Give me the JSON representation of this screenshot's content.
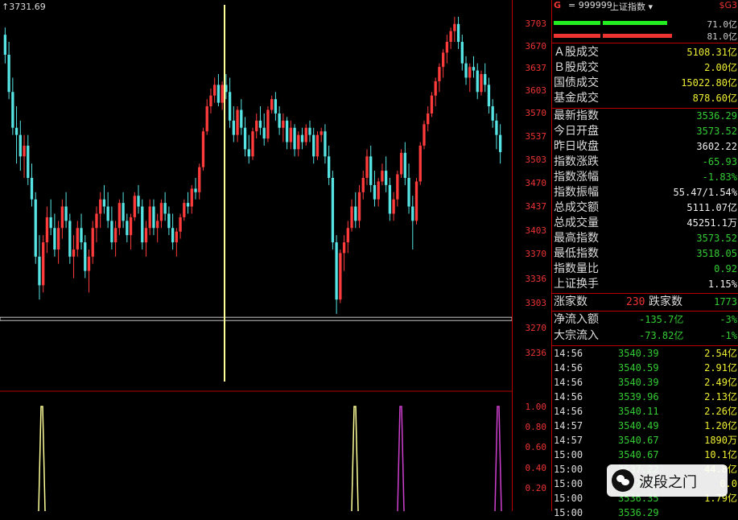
{
  "chart": {
    "max_label": "3731.69",
    "y_ticks": [
      "3703",
      "3670",
      "3637",
      "3603",
      "3570",
      "3537",
      "3503",
      "3470",
      "3437",
      "3403",
      "3370",
      "3336",
      "3303",
      "3270",
      "3236"
    ],
    "sub_ticks": [
      "1.00",
      "0.80",
      "0.60",
      "0.40",
      "0.20"
    ],
    "colors": {
      "up": "#ff3b3b",
      "down": "#56e4e4",
      "ref": "#c8c8c8",
      "cursor": "#ffff99",
      "grid": "#b00000",
      "sub_yellow": "#ffff99",
      "sub_purple": "#d040d0"
    }
  },
  "chart_data": {
    "type": "candlestick",
    "ylim": [
      3220,
      3735
    ],
    "reference_line": 3303,
    "candles": [
      [
        3700,
        3710,
        3660,
        3672
      ],
      [
        3672,
        3690,
        3610,
        3620
      ],
      [
        3620,
        3640,
        3560,
        3570
      ],
      [
        3570,
        3600,
        3520,
        3560
      ],
      [
        3560,
        3580,
        3510,
        3530
      ],
      [
        3530,
        3560,
        3500,
        3545
      ],
      [
        3545,
        3560,
        3490,
        3500
      ],
      [
        3500,
        3520,
        3460,
        3470
      ],
      [
        3470,
        3480,
        3380,
        3390
      ],
      [
        3390,
        3420,
        3330,
        3350
      ],
      [
        3350,
        3420,
        3340,
        3410
      ],
      [
        3410,
        3460,
        3395,
        3445
      ],
      [
        3445,
        3470,
        3420,
        3430
      ],
      [
        3430,
        3450,
        3390,
        3400
      ],
      [
        3400,
        3440,
        3380,
        3430
      ],
      [
        3430,
        3470,
        3415,
        3460
      ],
      [
        3460,
        3480,
        3430,
        3440
      ],
      [
        3440,
        3450,
        3380,
        3390
      ],
      [
        3390,
        3420,
        3360,
        3400
      ],
      [
        3400,
        3440,
        3390,
        3430
      ],
      [
        3430,
        3450,
        3400,
        3410
      ],
      [
        3410,
        3420,
        3360,
        3370
      ],
      [
        3370,
        3400,
        3340,
        3390
      ],
      [
        3390,
        3440,
        3380,
        3430
      ],
      [
        3430,
        3460,
        3410,
        3450
      ],
      [
        3450,
        3480,
        3430,
        3470
      ],
      [
        3470,
        3490,
        3450,
        3460
      ],
      [
        3460,
        3480,
        3430,
        3440
      ],
      [
        3440,
        3460,
        3400,
        3410
      ],
      [
        3410,
        3440,
        3390,
        3430
      ],
      [
        3430,
        3470,
        3420,
        3465
      ],
      [
        3465,
        3480,
        3430,
        3440
      ],
      [
        3440,
        3450,
        3410,
        3420
      ],
      [
        3420,
        3450,
        3400,
        3445
      ],
      [
        3445,
        3480,
        3440,
        3475
      ],
      [
        3475,
        3490,
        3450,
        3460
      ],
      [
        3460,
        3470,
        3400,
        3410
      ],
      [
        3410,
        3440,
        3390,
        3430
      ],
      [
        3430,
        3470,
        3420,
        3460
      ],
      [
        3460,
        3470,
        3420,
        3430
      ],
      [
        3430,
        3450,
        3410,
        3440
      ],
      [
        3440,
        3470,
        3430,
        3465
      ],
      [
        3465,
        3480,
        3440,
        3450
      ],
      [
        3450,
        3460,
        3420,
        3430
      ],
      [
        3430,
        3450,
        3400,
        3410
      ],
      [
        3410,
        3430,
        3390,
        3425
      ],
      [
        3425,
        3450,
        3415,
        3445
      ],
      [
        3445,
        3470,
        3440,
        3465
      ],
      [
        3465,
        3480,
        3450,
        3460
      ],
      [
        3460,
        3490,
        3450,
        3485
      ],
      [
        3485,
        3500,
        3470,
        3480
      ],
      [
        3480,
        3520,
        3470,
        3515
      ],
      [
        3515,
        3570,
        3510,
        3565
      ],
      [
        3565,
        3610,
        3560,
        3600
      ],
      [
        3600,
        3625,
        3590,
        3615
      ],
      [
        3615,
        3640,
        3605,
        3630
      ],
      [
        3630,
        3645,
        3600,
        3605
      ],
      [
        3605,
        3635,
        3595,
        3630
      ],
      [
        3630,
        3645,
        3610,
        3620
      ],
      [
        3620,
        3640,
        3570,
        3580
      ],
      [
        3580,
        3600,
        3550,
        3560
      ],
      [
        3560,
        3600,
        3550,
        3595
      ],
      [
        3595,
        3610,
        3560,
        3570
      ],
      [
        3570,
        3585,
        3530,
        3540
      ],
      [
        3540,
        3560,
        3520,
        3530
      ],
      [
        3530,
        3570,
        3525,
        3565
      ],
      [
        3565,
        3590,
        3555,
        3580
      ],
      [
        3580,
        3600,
        3560,
        3570
      ],
      [
        3570,
        3590,
        3545,
        3555
      ],
      [
        3555,
        3600,
        3550,
        3595
      ],
      [
        3595,
        3615,
        3590,
        3610
      ],
      [
        3610,
        3620,
        3580,
        3590
      ],
      [
        3590,
        3600,
        3560,
        3570
      ],
      [
        3570,
        3590,
        3550,
        3580
      ],
      [
        3580,
        3585,
        3540,
        3550
      ],
      [
        3550,
        3580,
        3540,
        3570
      ],
      [
        3570,
        3575,
        3530,
        3540
      ],
      [
        3540,
        3565,
        3530,
        3560
      ],
      [
        3560,
        3570,
        3540,
        3550
      ],
      [
        3550,
        3575,
        3545,
        3570
      ],
      [
        3570,
        3580,
        3550,
        3560
      ],
      [
        3560,
        3570,
        3520,
        3530
      ],
      [
        3530,
        3565,
        3525,
        3560
      ],
      [
        3560,
        3570,
        3550,
        3565
      ],
      [
        3565,
        3575,
        3520,
        3530
      ],
      [
        3530,
        3545,
        3490,
        3500
      ],
      [
        3500,
        3510,
        3400,
        3410
      ],
      [
        3410,
        3420,
        3310,
        3330
      ],
      [
        3330,
        3400,
        3325,
        3395
      ],
      [
        3395,
        3420,
        3370,
        3410
      ],
      [
        3410,
        3440,
        3395,
        3430
      ],
      [
        3430,
        3470,
        3425,
        3460
      ],
      [
        3460,
        3480,
        3430,
        3440
      ],
      [
        3440,
        3490,
        3430,
        3480
      ],
      [
        3480,
        3510,
        3470,
        3500
      ],
      [
        3500,
        3540,
        3490,
        3530
      ],
      [
        3530,
        3545,
        3480,
        3490
      ],
      [
        3490,
        3510,
        3460,
        3470
      ],
      [
        3470,
        3500,
        3460,
        3495
      ],
      [
        3495,
        3520,
        3490,
        3510
      ],
      [
        3510,
        3530,
        3480,
        3490
      ],
      [
        3490,
        3500,
        3440,
        3450
      ],
      [
        3450,
        3480,
        3440,
        3470
      ],
      [
        3470,
        3510,
        3460,
        3505
      ],
      [
        3505,
        3540,
        3500,
        3535
      ],
      [
        3535,
        3550,
        3490,
        3500
      ],
      [
        3500,
        3520,
        3450,
        3460
      ],
      [
        3460,
        3475,
        3400,
        3440
      ],
      [
        3440,
        3500,
        3435,
        3495
      ],
      [
        3495,
        3550,
        3490,
        3545
      ],
      [
        3545,
        3580,
        3540,
        3575
      ],
      [
        3575,
        3600,
        3565,
        3590
      ],
      [
        3590,
        3620,
        3585,
        3615
      ],
      [
        3615,
        3640,
        3600,
        3635
      ],
      [
        3635,
        3660,
        3620,
        3655
      ],
      [
        3655,
        3680,
        3640,
        3675
      ],
      [
        3675,
        3700,
        3660,
        3690
      ],
      [
        3690,
        3710,
        3680,
        3705
      ],
      [
        3705,
        3725,
        3690,
        3715
      ],
      [
        3715,
        3725,
        3680,
        3690
      ],
      [
        3690,
        3700,
        3650,
        3660
      ],
      [
        3660,
        3670,
        3630,
        3640
      ],
      [
        3640,
        3660,
        3620,
        3655
      ],
      [
        3655,
        3670,
        3640,
        3650
      ],
      [
        3650,
        3660,
        3610,
        3620
      ],
      [
        3620,
        3650,
        3615,
        3645
      ],
      [
        3645,
        3660,
        3620,
        3630
      ],
      [
        3630,
        3640,
        3590,
        3600
      ],
      [
        3600,
        3610,
        3570,
        3580
      ],
      [
        3580,
        3590,
        3540,
        3560
      ],
      [
        3560,
        3575,
        3520,
        3536
      ]
    ]
  },
  "panel": {
    "header": {
      "g": "G",
      "code": "= 999999",
      "name": "上证指数 ▾",
      "sg": "$G3"
    },
    "bar1_value": "71.0亿",
    "bar2_value": "81.0亿",
    "vol": [
      {
        "label": "Ａ股成交",
        "value": "5108.31亿"
      },
      {
        "label": "Ｂ股成交",
        "value": "2.00亿"
      },
      {
        "label": "国债成交",
        "value": "15022.80亿"
      },
      {
        "label": "基金成交",
        "value": "878.60亿"
      }
    ],
    "stats": [
      {
        "label": "最新指数",
        "value": "3536.29",
        "color": "green"
      },
      {
        "label": "今日开盘",
        "value": "3573.52",
        "color": "green"
      },
      {
        "label": "昨日收盘",
        "value": "3602.22",
        "color": "white"
      },
      {
        "label": "指数涨跌",
        "value": "-65.93",
        "color": "green"
      },
      {
        "label": "指数涨幅",
        "value": "-1.83%",
        "color": "green"
      },
      {
        "label": "指数振幅",
        "value": "55.47/1.54%",
        "color": "white"
      },
      {
        "label": "总成交额",
        "value": "5111.07亿",
        "color": "white"
      },
      {
        "label": "总成交量",
        "value": "45251.1万",
        "color": "white"
      },
      {
        "label": "最高指数",
        "value": "3573.52",
        "color": "green"
      },
      {
        "label": "最低指数",
        "value": "3518.05",
        "color": "green"
      },
      {
        "label": "指数量比",
        "value": "0.92",
        "color": "green"
      },
      {
        "label": "上证换手",
        "value": "1.15%",
        "color": "white"
      }
    ],
    "breadth": {
      "up_label": "涨家数",
      "up_value": "230",
      "down_label": "跌家数",
      "down_value": "1773"
    },
    "flows": [
      {
        "label": "净流入额",
        "value": "-135.7亿",
        "pct": "-3%"
      },
      {
        "label": "大宗流入",
        "value": "-73.82亿",
        "pct": "-1%"
      }
    ],
    "ticks": [
      {
        "time": "14:56",
        "price": "3540.39",
        "qty": "2.54亿"
      },
      {
        "time": "14:56",
        "price": "3540.59",
        "qty": "2.91亿"
      },
      {
        "time": "14:56",
        "price": "3540.39",
        "qty": "2.49亿"
      },
      {
        "time": "14:56",
        "price": "3539.96",
        "qty": "2.13亿"
      },
      {
        "time": "14:56",
        "price": "3540.11",
        "qty": "2.26亿"
      },
      {
        "time": "14:57",
        "price": "3540.49",
        "qty": "1.20亿"
      },
      {
        "time": "14:57",
        "price": "3540.67",
        "qty": "1890万"
      },
      {
        "time": "15:00",
        "price": "3540.67",
        "qty": "10.1亿"
      },
      {
        "time": "15:00",
        "price": "3537.22",
        "qty": "44.8亿"
      },
      {
        "time": "15:00",
        "price": "3537.22",
        "qty": "0.0"
      },
      {
        "time": "15:00",
        "price": "3536.35",
        "qty": "1.79亿"
      },
      {
        "time": "15:00",
        "price": "3536.29",
        "qty": ""
      }
    ]
  },
  "watermark": {
    "text": "波段之门"
  }
}
